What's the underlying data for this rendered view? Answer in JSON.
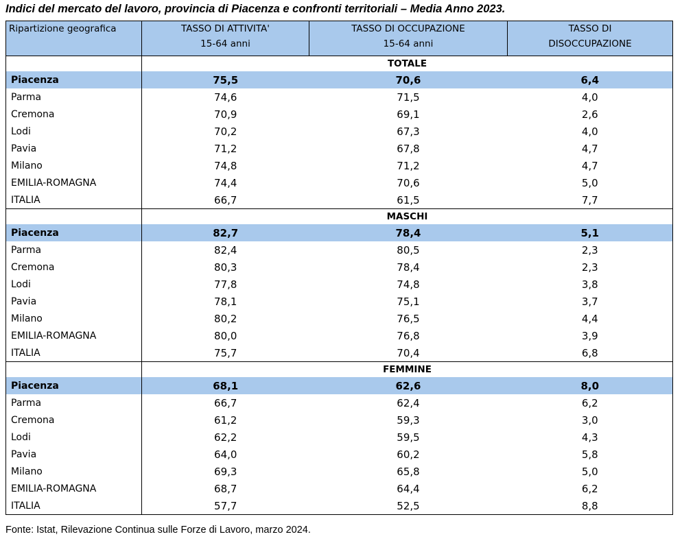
{
  "title": "Indici del mercato del lavoro, provincia di Piacenza e confronti territoriali – Media Anno 2023.",
  "columns": {
    "area": "Ripartizione geografica",
    "activity": [
      "TASSO DI ATTIVITA'",
      "15-64 anni"
    ],
    "employment": [
      "TASSO DI OCCUPAZIONE",
      "15-64 anni"
    ],
    "unemployment": [
      "TASSO DI",
      "DISOCCUPAZIONE"
    ]
  },
  "sections": [
    {
      "label": "TOTALE",
      "rows": [
        {
          "area": "Piacenza",
          "activity": "75,5",
          "employment": "70,6",
          "unemployment": "6,4",
          "highlight": true
        },
        {
          "area": "Parma",
          "activity": "74,6",
          "employment": "71,5",
          "unemployment": "4,0"
        },
        {
          "area": "Cremona",
          "activity": "70,9",
          "employment": "69,1",
          "unemployment": "2,6"
        },
        {
          "area": "Lodi",
          "activity": "70,2",
          "employment": "67,3",
          "unemployment": "4,0"
        },
        {
          "area": "Pavia",
          "activity": "71,2",
          "employment": "67,8",
          "unemployment": "4,7"
        },
        {
          "area": "Milano",
          "activity": "74,8",
          "employment": "71,2",
          "unemployment": "4,7"
        },
        {
          "area": "EMILIA-ROMAGNA",
          "activity": "74,4",
          "employment": "70,6",
          "unemployment": "5,0"
        },
        {
          "area": "ITALIA",
          "activity": "66,7",
          "employment": "61,5",
          "unemployment": "7,7"
        }
      ]
    },
    {
      "label": "MASCHI",
      "rows": [
        {
          "area": "Piacenza",
          "activity": "82,7",
          "employment": "78,4",
          "unemployment": "5,1",
          "highlight": true
        },
        {
          "area": "Parma",
          "activity": "82,4",
          "employment": "80,5",
          "unemployment": "2,3"
        },
        {
          "area": "Cremona",
          "activity": "80,3",
          "employment": "78,4",
          "unemployment": "2,3"
        },
        {
          "area": "Lodi",
          "activity": "77,8",
          "employment": "74,8",
          "unemployment": "3,8"
        },
        {
          "area": "Pavia",
          "activity": "78,1",
          "employment": "75,1",
          "unemployment": "3,7"
        },
        {
          "area": "Milano",
          "activity": "80,2",
          "employment": "76,5",
          "unemployment": "4,4"
        },
        {
          "area": "EMILIA-ROMAGNA",
          "activity": "80,0",
          "employment": "76,8",
          "unemployment": "3,9"
        },
        {
          "area": "ITALIA",
          "activity": "75,7",
          "employment": "70,4",
          "unemployment": "6,8"
        }
      ]
    },
    {
      "label": "FEMMINE",
      "rows": [
        {
          "area": "Piacenza",
          "activity": "68,1",
          "employment": "62,6",
          "unemployment": "8,0",
          "highlight": true
        },
        {
          "area": "Parma",
          "activity": "66,7",
          "employment": "62,4",
          "unemployment": "6,2"
        },
        {
          "area": "Cremona",
          "activity": "61,2",
          "employment": "59,3",
          "unemployment": "3,0"
        },
        {
          "area": "Lodi",
          "activity": "62,2",
          "employment": "59,5",
          "unemployment": "4,3"
        },
        {
          "area": "Pavia",
          "activity": "64,0",
          "employment": "60,2",
          "unemployment": "5,8"
        },
        {
          "area": "Milano",
          "activity": "69,3",
          "employment": "65,8",
          "unemployment": "5,0"
        },
        {
          "area": "EMILIA-ROMAGNA",
          "activity": "68,7",
          "employment": "64,4",
          "unemployment": "6,2"
        },
        {
          "area": "ITALIA",
          "activity": "57,7",
          "employment": "52,5",
          "unemployment": "8,8"
        }
      ]
    }
  ],
  "footer": "Fonte: Istat, Rilevazione Continua sulle Forze di Lavoro, marzo 2024.",
  "colors": {
    "header_fill": "#a9c9ec",
    "highlight_fill": "#a9c9ec",
    "border": "#000000"
  }
}
